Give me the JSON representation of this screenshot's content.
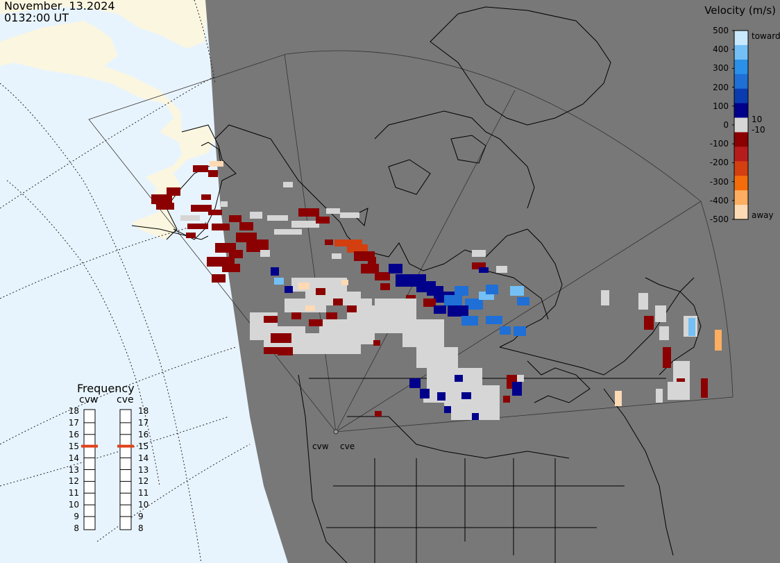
{
  "header": {
    "date": "November, 13.2024",
    "time": "0132:00 UT"
  },
  "legend": {
    "title": "Velocity (m/s)",
    "tick_labels": [
      "500",
      "400",
      "300",
      "200",
      "100",
      "0",
      "-100",
      "-200",
      "-300",
      "-400",
      "-500"
    ],
    "extra_labels": {
      "toward": "toward",
      "away": "away",
      "pos_threshold": "10",
      "neg_threshold": "-10"
    },
    "colors": [
      "#fdd9b4",
      "#fdae61",
      "#f46d0a",
      "#d33f0f",
      "#b71c1c",
      "#8b0000",
      "#d6d6d6",
      "#00008b",
      "#0a3cb0",
      "#1f6fd6",
      "#2a90e8",
      "#74c0f5",
      "#c8e8fb"
    ]
  },
  "frequency": {
    "title": "Frequency",
    "radars": [
      {
        "name": "cvw",
        "selected_mhz": 15
      },
      {
        "name": "cve",
        "selected_mhz": 15
      }
    ],
    "scale": [
      "18",
      "17",
      "16",
      "15",
      "14",
      "13",
      "12",
      "11",
      "10",
      "9",
      "8"
    ],
    "marker_color": "#e0421c"
  },
  "sites": {
    "west": "cvw",
    "east": "cve"
  },
  "colors": {
    "ocean": "#e8f4fd",
    "land_outside": "#fbf6e0",
    "night_land": "#787878",
    "coast": "#000000",
    "gridlines": "#444444"
  }
}
